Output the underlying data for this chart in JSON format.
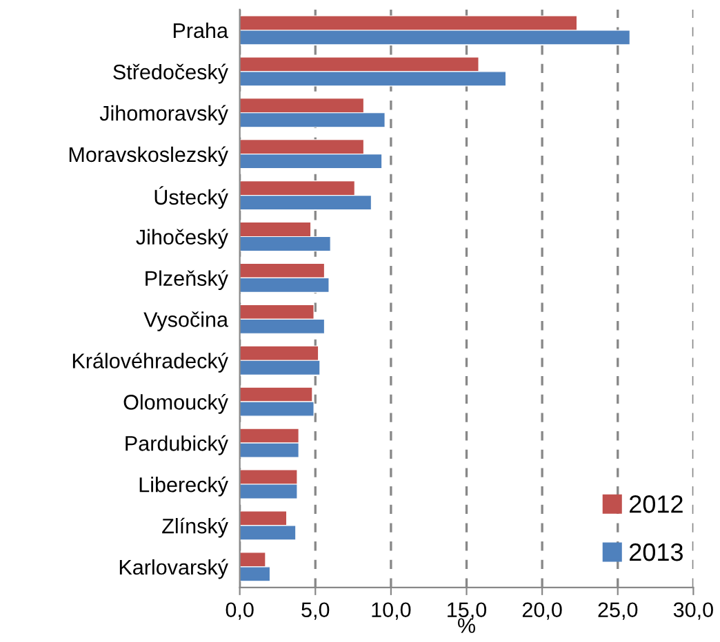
{
  "chart_data": {
    "type": "bar",
    "orientation": "horizontal",
    "xlabel": "%",
    "categories": [
      "Praha",
      "Středočeský",
      "Jihomoravský",
      "Moravskoslezský",
      "Ústecký",
      "Jihočeský",
      "Plzeňský",
      "Vysočina",
      "Královéhradecký",
      "Olomoucký",
      "Pardubický",
      "Liberecký",
      "Zlínský",
      "Karlovarský"
    ],
    "series": [
      {
        "name": "2012",
        "color": "#c0504d",
        "values": [
          22.3,
          15.8,
          8.2,
          8.2,
          7.6,
          4.7,
          5.6,
          4.9,
          5.2,
          4.8,
          3.9,
          3.8,
          3.1,
          1.7
        ]
      },
      {
        "name": "2013",
        "color": "#4f81bd",
        "values": [
          25.8,
          17.6,
          9.6,
          9.4,
          8.7,
          6.0,
          5.9,
          5.6,
          5.3,
          4.9,
          3.9,
          3.8,
          3.7,
          2.0
        ]
      }
    ],
    "xlim": [
      0,
      30
    ],
    "xticks": [
      {
        "value": 0,
        "label": "0,0"
      },
      {
        "value": 5,
        "label": "5,0"
      },
      {
        "value": 10,
        "label": "10,0"
      },
      {
        "value": 15,
        "label": "15,0"
      },
      {
        "value": 20,
        "label": "20,0"
      },
      {
        "value": 25,
        "label": "25,0"
      },
      {
        "value": 30,
        "label": "30,0"
      }
    ],
    "grid": "x",
    "legend": "bottom right",
    "line_style": "dashed"
  }
}
